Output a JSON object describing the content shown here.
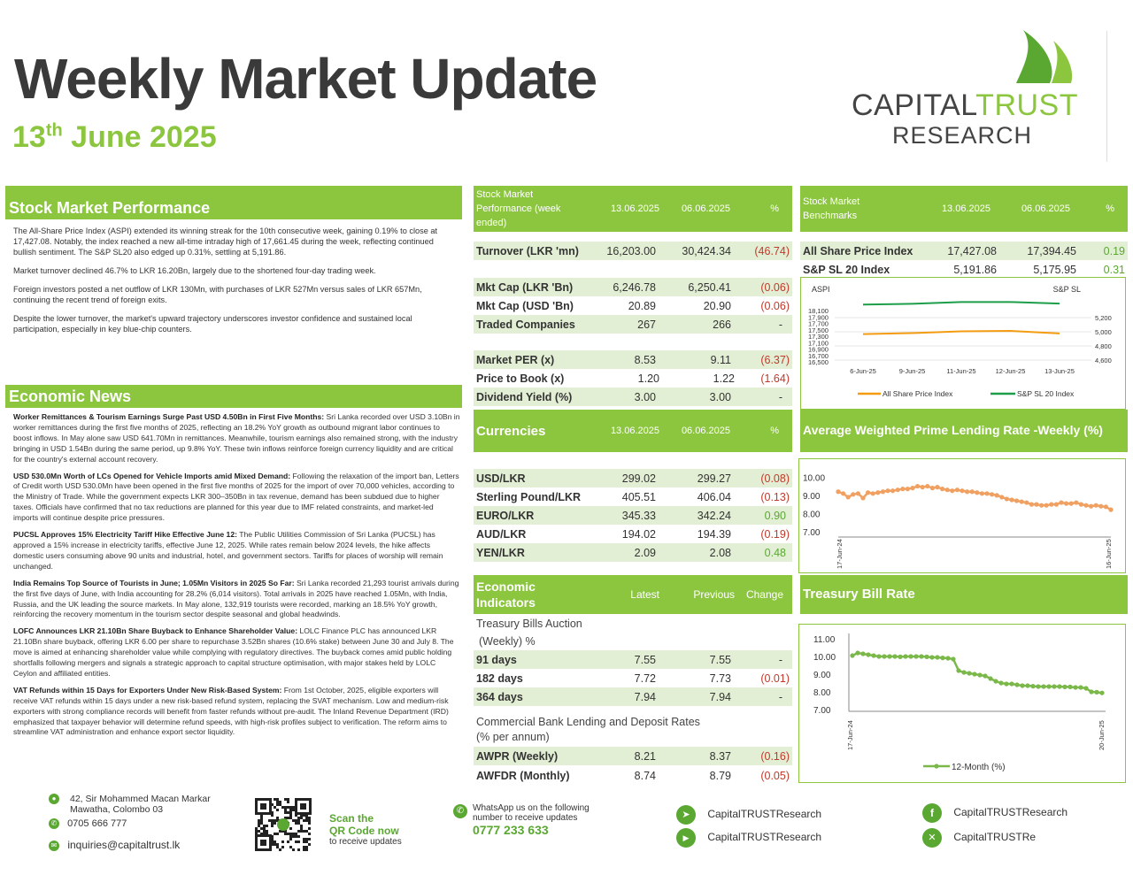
{
  "header": {
    "title": "Weekly Market Update",
    "date_day": "13",
    "date_suffix": "th",
    "date_rest": " June 2025",
    "logo_line1_a": "CAPITAL",
    "logo_line1_b": "TRUST",
    "logo_line2": "RESEARCH"
  },
  "stock_market": {
    "title": "Stock Market Performance",
    "paragraphs": [
      "The All-Share Price Index (ASPI) extended its winning streak for the 10th consecutive week, gaining 0.19% to close at 17,427.08. Notably, the index reached a new all-time intraday high of 17,661.45 during the week, reflecting continued bullish sentiment. The S&P SL20 also edged up 0.31%, settling at 5,191.86.",
      "Market turnover declined 46.7% to LKR 16.20Bn, largely due to the shortened four-day trading week.",
      "Foreign investors posted a net outflow of LKR 130Mn, with purchases of LKR 527Mn versus sales of LKR 657Mn, continuing the recent trend of foreign exits.",
      "Despite the lower turnover, the market's upward trajectory underscores investor confidence and sustained local participation, especially in key blue-chip counters."
    ]
  },
  "economic_news": {
    "title": "Economic News",
    "items": [
      {
        "head": "Worker Remittances & Tourism Earnings Surge Past USD 4.50Bn in First Five Months:",
        "body": " Sri Lanka recorded over USD 3.10Bn in worker remittances during the first five months of 2025, reflecting an 18.2% YoY growth as outbound migrant labor continues to boost inflows. In May alone saw USD 641.70Mn in remittances. Meanwhile, tourism earnings also remained strong, with the industry bringing in USD 1.54Bn during the same period, up 9.8% YoY. These twin inflows reinforce foreign currency liquidity and are critical for the country's external account recovery."
      },
      {
        "head": "USD 530.0Mn Worth of LCs Opened for Vehicle Imports amid Mixed Demand:",
        "body": " Following the relaxation of the import ban, Letters of Credit worth USD 530.0Mn have been opened in the first five months of 2025 for the import of over 70,000 vehicles, according to the Ministry of Trade. While the government expects LKR 300–350Bn in tax revenue, demand has been subdued due to higher taxes. Officials have confirmed that no tax reductions are planned for this year due to IMF related constraints, and market-led imports will continue despite price pressures."
      },
      {
        "head": "PUCSL Approves 15% Electricity Tariff Hike Effective June 12:",
        "body": " The Public Utilities Commission of Sri Lanka (PUCSL) has approved a 15% increase in electricity tariffs, effective June 12, 2025. While rates remain below 2024 levels, the hike affects domestic users consuming above 90 units and industrial, hotel, and government sectors. Tariffs for places of worship will remain unchanged."
      },
      {
        "head": "India Remains Top Source of Tourists in June; 1.05Mn Visitors in 2025 So Far:",
        "body": " Sri Lanka recorded 21,293 tourist arrivals during the first five days of June, with India accounting for 28.2% (6,014 visitors). Total arrivals in 2025 have reached 1.05Mn, with India, Russia, and the UK leading the source markets. In May alone, 132,919 tourists were recorded, marking an 18.5% YoY growth, reinforcing the recovery momentum in the tourism sector despite seasonal and global headwinds."
      },
      {
        "head": "LOFC Announces LKR 21.10Bn Share Buyback to Enhance Shareholder Value:",
        "body": " LOLC Finance PLC has announced LKR 21.10Bn share buyback, offering LKR 6.00 per share to repurchase 3.52Bn shares (10.6% stake) between June 30 and July 8. The move is aimed at enhancing shareholder value while complying with regulatory directives. The buyback comes amid public holding shortfalls following mergers and signals a strategic approach to capital structure optimisation, with major stakes held by LOLC Ceylon and affiliated entities."
      },
      {
        "head": "VAT Refunds within 15 Days for Exporters Under New Risk-Based System:",
        "body": " From 1st October, 2025, eligible exporters will receive VAT refunds within 15 days under a new risk-based refund system, replacing the SVAT mechanism. Low and medium-risk exporters with strong compliance records will benefit from faster refunds without pre-audit. The Inland Revenue Department (IRD) emphasized that taxpayer behavior will determine refund speeds, with high-risk profiles subject to verification. The reform aims to streamline VAT administration and enhance export sector liquidity."
      }
    ]
  },
  "smp_table": {
    "header": [
      "Stock Market Performance (week ended)",
      "13.06.2025",
      "06.06.2025",
      "%"
    ],
    "rows": [
      [
        "Turnover (LKR 'mn)",
        "16,203.00",
        "30,424.34",
        "(46.74)"
      ],
      [
        "Mkt Cap (LKR 'Bn)",
        "6,246.78",
        "6,250.41",
        "(0.06)"
      ],
      [
        "Mkt Cap (USD 'Bn)",
        "20.89",
        "20.90",
        "(0.06)"
      ],
      [
        "Traded Companies",
        "267",
        "266",
        "-"
      ],
      [
        "Market PER (x)",
        "8.53",
        "9.11",
        "(6.37)"
      ],
      [
        "Price to Book (x)",
        "1.20",
        "1.22",
        "(1.64)"
      ],
      [
        "Dividend Yield (%)",
        "3.00",
        "3.00",
        "-"
      ]
    ]
  },
  "benchmarks": {
    "header": [
      "Stock Market Benchmarks",
      "13.06.2025",
      "06.06.2025",
      "%"
    ],
    "rows": [
      [
        "All Share Price Index",
        "17,427.08",
        "17,394.45",
        "0.19"
      ],
      [
        "S&P SL 20 Index",
        "5,191.86",
        "5,175.95",
        "0.31"
      ]
    ]
  },
  "currencies": {
    "header": [
      "Currencies",
      "13.06.2025",
      "06.06.2025",
      "%"
    ],
    "rows": [
      [
        "USD/LKR",
        "299.02",
        "299.27",
        "(0.08)"
      ],
      [
        "Sterling Pound/LKR",
        "405.51",
        "406.04",
        "(0.13)"
      ],
      [
        "EURO/LKR",
        "345.33",
        "342.24",
        "0.90"
      ],
      [
        "AUD/LKR",
        "194.02",
        "194.39",
        "(0.19)"
      ],
      [
        "YEN/LKR",
        "2.09",
        "2.08",
        "0.48"
      ]
    ]
  },
  "econ_indicators": {
    "header": [
      "Economic Indicators",
      "Latest",
      "Previous",
      "Change"
    ],
    "tb_caption_1": "Treasury Bills Auction",
    "tb_caption_2": "(Weekly) %",
    "tb_rows": [
      [
        "91 days",
        "7.55",
        "7.55",
        "-"
      ],
      [
        "182 days",
        "7.72",
        "7.73",
        "(0.01)"
      ],
      [
        "364 days",
        "7.94",
        "7.94",
        "-"
      ]
    ],
    "cb_caption_1": "Commercial Bank Lending and Deposit Rates",
    "cb_caption_2": "(% per annum)",
    "cb_rows": [
      [
        "AWPR (Weekly)",
        "8.21",
        "8.37",
        "(0.16)"
      ],
      [
        "AWFDR (Monthly)",
        "8.74",
        "8.79",
        "(0.05)"
      ]
    ]
  },
  "charts": {
    "awpr_title": "Average Weighted Prime Lending Rate -Weekly (%)",
    "tbill_title": "Treasury Bill  Rate"
  },
  "chart_data": [
    {
      "type": "line",
      "title": "",
      "x": [
        "6-Jun-25",
        "9-Jun-25",
        "11-Jun-25",
        "12-Jun-25",
        "13-Jun-25"
      ],
      "left_axis_label": "ASPI",
      "right_axis_label": "S&P SL",
      "left_ticks": [
        "18,100",
        "17,900",
        "17,700",
        "17,500",
        "17,300",
        "17,100",
        "16,900",
        "16,700",
        "16,500"
      ],
      "right_ticks": [
        "5,200",
        "5,000",
        "4,800",
        "4,600"
      ],
      "series": [
        {
          "name": "All Share Price Index",
          "axis": "left",
          "values": [
            17394,
            17440,
            17520,
            17540,
            17427
          ],
          "color": "#f39c12"
        },
        {
          "name": "S&P SL 20 Index",
          "axis": "right",
          "values": [
            5176,
            5188,
            5215,
            5215,
            5192
          ],
          "color": "#1e9e4a"
        }
      ],
      "ylim_left": [
        16500,
        18100
      ],
      "ylim_right": [
        4500,
        5300
      ],
      "legend": "bottom"
    },
    {
      "type": "line",
      "title": "",
      "y_ticks": [
        "10.00",
        "9.00",
        "8.00",
        "7.00"
      ],
      "ylim": [
        7,
        10.5
      ],
      "x_start": "17-Jun-24",
      "x_end": "16-Jun-25",
      "series": [
        {
          "name": "AWPR",
          "color": "#f0a060",
          "values": [
            9.2,
            9.1,
            8.9,
            9.05,
            9.1,
            8.85,
            9.15,
            9.1,
            9.15,
            9.2,
            9.25,
            9.25,
            9.3,
            9.35,
            9.35,
            9.4,
            9.5,
            9.45,
            9.5,
            9.4,
            9.45,
            9.35,
            9.3,
            9.25,
            9.3,
            9.25,
            9.2,
            9.2,
            9.15,
            9.1,
            9.1,
            9.05,
            9.0,
            8.9,
            8.8,
            8.75,
            8.7,
            8.65,
            8.6,
            8.5,
            8.5,
            8.45,
            8.45,
            8.5,
            8.5,
            8.6,
            8.55,
            8.55,
            8.6,
            8.5,
            8.45,
            8.4,
            8.45,
            8.4,
            8.37,
            8.21
          ]
        }
      ]
    },
    {
      "type": "line",
      "title": "",
      "y_ticks": [
        "11.00",
        "10.00",
        "9.00",
        "8.00",
        "7.00"
      ],
      "ylim": [
        7,
        11
      ],
      "x_start": "17-Jun-24",
      "x_end": "20-Jun-25",
      "series": [
        {
          "name": "12-Month (%)",
          "color": "#7ab84a",
          "values": [
            10.05,
            10.2,
            10.15,
            10.1,
            10.05,
            10.0,
            10.0,
            10.0,
            10.0,
            9.98,
            10.0,
            10.0,
            10.0,
            10.0,
            9.98,
            9.95,
            9.95,
            9.92,
            9.9,
            9.85,
            9.2,
            9.1,
            9.05,
            9.0,
            8.95,
            8.9,
            8.75,
            8.6,
            8.5,
            8.45,
            8.45,
            8.4,
            8.35,
            8.35,
            8.32,
            8.3,
            8.3,
            8.3,
            8.3,
            8.3,
            8.28,
            8.28,
            8.25,
            8.25,
            8.2,
            8.0,
            7.98,
            7.94
          ]
        }
      ],
      "legend": "bottom"
    }
  ],
  "footer": {
    "address_1": "42, Sir Mohammed Macan Markar",
    "address_2": "Mawatha, Colombo 03",
    "phone": "0705 666 777",
    "email": "inquiries@capitaltrust.lk",
    "qr_1": "Scan the",
    "qr_2": "QR Code now",
    "qr_3": "to receive updates",
    "wa_1": "WhatsApp us on the following",
    "wa_2": "number to receive updates",
    "wa_number": "0777 233 633",
    "telegram": "CapitalTRUSTResearch",
    "youtube": "CapitalTRUSTResearch",
    "facebook": "CapitalTRUSTResearch",
    "x": "CapitalTRUSTRe"
  }
}
